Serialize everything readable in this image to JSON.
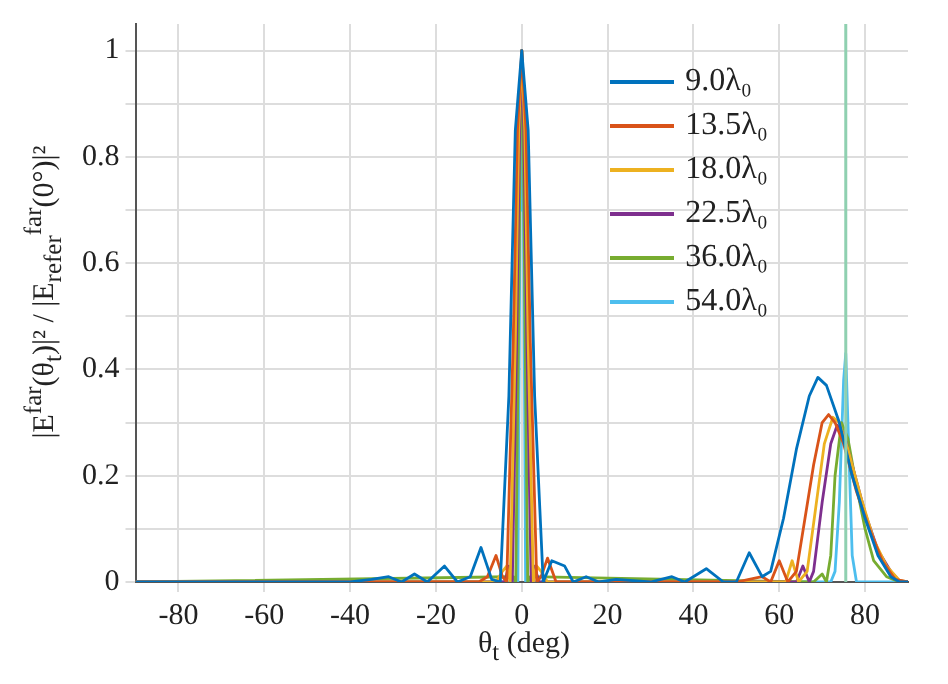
{
  "chart_data": {
    "type": "line",
    "xlabel": "θ$_{t}$ (deg)",
    "ylabel": "|E$^{far}$(θ$_{t}$)|² / |E$_{refer}$$^{far}$(0°)|²",
    "xlim": [
      -90,
      90
    ],
    "xticks": [
      -80,
      -60,
      -40,
      -20,
      0,
      20,
      40,
      60,
      80
    ],
    "ylim": [
      0,
      1.05
    ],
    "yticks": [
      0,
      {
        "value": 0.1,
        "label": null
      },
      0.2,
      {
        "value": 0.3,
        "label": null
      },
      0.4,
      {
        "value": 0.5,
        "label": null
      },
      0.6,
      {
        "value": 0.7,
        "label": null
      },
      0.8,
      {
        "value": 0.9,
        "label": null
      },
      1
    ],
    "grid": true,
    "legend": "top right",
    "marker": "none",
    "line_style": "solid",
    "ref_lines": [
      {
        "axis": "x",
        "value": 75.5,
        "color": "#8fd0b0"
      }
    ],
    "series": [
      {
        "name": "9.0λ₀",
        "color": "#0072bd",
        "x": [
          -90,
          -40,
          -35,
          -31,
          -28,
          -25,
          -22,
          -18,
          -15,
          -12,
          -9.5,
          -7,
          -5,
          -3,
          -1.5,
          0,
          1.5,
          3,
          5,
          7,
          10,
          12,
          15,
          18,
          22,
          30,
          35,
          38,
          43,
          47,
          50,
          53,
          56,
          58,
          61,
          64,
          67,
          69,
          71,
          74,
          77,
          80,
          83,
          86,
          88,
          90
        ],
        "values": [
          0,
          0,
          0.005,
          0.01,
          0,
          0.015,
          0,
          0.03,
          0,
          0.01,
          0.065,
          0.005,
          0,
          0.35,
          0.85,
          1,
          0.85,
          0.35,
          0,
          0.04,
          0.03,
          0,
          0.01,
          0,
          0.005,
          0,
          0.01,
          0,
          0.025,
          0,
          0,
          0.055,
          0.01,
          0.02,
          0.12,
          0.25,
          0.35,
          0.385,
          0.37,
          0.3,
          0.2,
          0.12,
          0.05,
          0.01,
          0,
          0
        ]
      },
      {
        "name": "13.5λ₀",
        "color": "#d95319",
        "x": [
          -90,
          -10,
          -8,
          -6,
          -4.5,
          -3.5,
          -2,
          -1,
          0,
          1,
          2,
          3.5,
          4.5,
          6,
          8,
          20,
          50,
          56,
          58,
          60,
          62,
          64,
          66,
          68,
          70,
          71.5,
          73,
          75,
          78,
          81,
          84,
          87,
          90
        ],
        "values": [
          0,
          0,
          0.01,
          0.05,
          0.01,
          0,
          0.45,
          0.85,
          1,
          0.85,
          0.45,
          0,
          0.01,
          0.045,
          0,
          0,
          0,
          0.01,
          0,
          0.04,
          0,
          0.02,
          0.12,
          0.22,
          0.3,
          0.315,
          0.3,
          0.26,
          0.17,
          0.1,
          0.04,
          0.005,
          0
        ]
      },
      {
        "name": "18.0λ₀",
        "color": "#edb120",
        "x": [
          -90,
          -6,
          -4.5,
          -3.5,
          -2.7,
          -1.5,
          -0.7,
          0,
          0.7,
          1.5,
          2.7,
          3.5,
          4.5,
          6,
          55,
          60,
          61.5,
          63,
          64.5,
          66.5,
          68.5,
          70.5,
          72.5,
          74,
          76,
          79,
          82,
          85,
          88,
          90
        ],
        "values": [
          0,
          0,
          0.02,
          0.03,
          0,
          0.45,
          0.85,
          1,
          0.85,
          0.45,
          0,
          0.03,
          0.02,
          0,
          0,
          0,
          0,
          0.04,
          0,
          0.02,
          0.14,
          0.26,
          0.31,
          0.3,
          0.25,
          0.16,
          0.08,
          0.03,
          0.003,
          0
        ]
      },
      {
        "name": "22.5λ₀",
        "color": "#7e2f8e",
        "x": [
          -90,
          -4,
          -3,
          -2.2,
          -1.2,
          -0.5,
          0,
          0.5,
          1.2,
          2.2,
          3,
          4,
          60,
          64,
          65.5,
          67,
          68,
          70,
          72,
          73.5,
          75,
          77,
          80,
          83,
          86,
          88,
          90
        ],
        "values": [
          0,
          0,
          0.03,
          0,
          0.45,
          0.85,
          1,
          0.85,
          0.45,
          0,
          0.03,
          0,
          0,
          0,
          0.03,
          0,
          0.02,
          0.15,
          0.26,
          0.295,
          0.28,
          0.22,
          0.13,
          0.06,
          0.02,
          0.002,
          0
        ]
      },
      {
        "name": "36.0λ₀",
        "color": "#77ac30",
        "x": [
          -90,
          -2,
          -1.4,
          -0.8,
          -0.3,
          0,
          0.3,
          0.8,
          1.4,
          2,
          68,
          70,
          71,
          72,
          73,
          74.5,
          76,
          78,
          80,
          82,
          85,
          88,
          90
        ],
        "values": [
          0,
          0.01,
          0,
          0.45,
          0.88,
          1,
          0.88,
          0.45,
          0,
          0.01,
          0,
          0.015,
          0,
          0.05,
          0.2,
          0.3,
          0.27,
          0.18,
          0.1,
          0.04,
          0.01,
          0,
          0
        ]
      },
      {
        "name": "54.0λ₀",
        "color": "#4dbeee",
        "x": [
          -90,
          -0.9,
          -0.4,
          0,
          0.4,
          0.9,
          72,
          73,
          74,
          75,
          75.5,
          76,
          77,
          78,
          90
        ],
        "values": [
          0,
          0,
          0.7,
          1,
          0.7,
          0,
          0,
          0.02,
          0.15,
          0.38,
          0.43,
          0.3,
          0.05,
          0,
          0
        ]
      }
    ]
  }
}
